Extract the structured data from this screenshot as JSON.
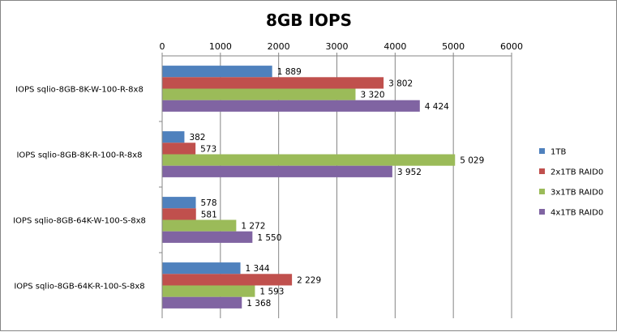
{
  "chart_data": {
    "type": "bar",
    "orientation": "horizontal",
    "title": "8GB IOPS",
    "xlabel": "",
    "ylabel": "",
    "xlim": [
      0,
      6000
    ],
    "ticks": [
      0,
      1000,
      2000,
      3000,
      4000,
      5000,
      6000
    ],
    "tick_labels": [
      "0",
      "1000",
      "2000",
      "3000",
      "4000",
      "5000",
      "6000"
    ],
    "x_axis_position": "top",
    "grid": "vertical major gridlines",
    "legend_position": "right",
    "categories": [
      "IOPS sqlio-8GB-8K-W-100-R-8x8",
      "IOPS  sqlio-8GB-8K-R-100-R-8x8",
      "IOPS sqlio-8GB-64K-W-100-S-8x8",
      "IOPS sqlio-8GB-64K-R-100-S-8x8"
    ],
    "series": [
      {
        "name": "1TB",
        "color": "#4F81BD",
        "values": [
          1889,
          382,
          578,
          1344
        ],
        "labels": [
          "1 889",
          "382",
          "578",
          "1 344"
        ]
      },
      {
        "name": "2x1TB RAID0",
        "color": "#C0504D",
        "values": [
          3802,
          573,
          581,
          2229
        ],
        "labels": [
          "3 802",
          "573",
          "581",
          "2 229"
        ]
      },
      {
        "name": "3x1TB RAID0",
        "color": "#9BBB59",
        "values": [
          3320,
          5029,
          1272,
          1593
        ],
        "labels": [
          "3 320",
          "5 029",
          "1 272",
          "1 593"
        ]
      },
      {
        "name": "4x1TB RAID0",
        "color": "#8064A2",
        "values": [
          4424,
          3952,
          1550,
          1368
        ],
        "labels": [
          "4 424",
          "3 952",
          "1 550",
          "1 368"
        ]
      }
    ]
  }
}
